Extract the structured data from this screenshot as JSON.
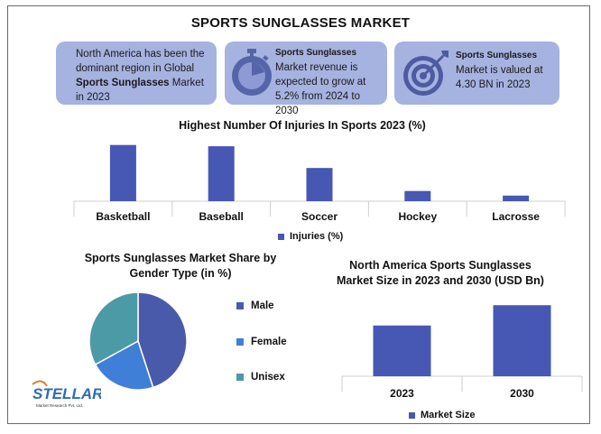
{
  "title": "SPORTS SUNGLASSES MARKET",
  "cards": {
    "card1": {
      "pre": "North America has been the dominant region in Global ",
      "bold": "Sports Sunglasses",
      "post": " Market in 2023"
    },
    "card2": {
      "heading": "Sports Sunglasses",
      "text": "Market revenue is expected to grow at 5.2% from 2024 to 2030",
      "icon": "stopwatch-icon"
    },
    "card3": {
      "heading": "Sports Sunglasses",
      "text": "Market is valued at 4.30 BN in 2023",
      "icon": "target-icon"
    }
  },
  "colors": {
    "bar": "#4658b4",
    "card": "#a6b2e0",
    "male": "#4a5aab",
    "female": "#3f7fd8",
    "unisex": "#4c9aa6"
  },
  "logo": {
    "name": "STELLAR",
    "tagline": "Market Research Pvt. Ltd."
  },
  "chart_data": [
    {
      "type": "bar",
      "title": "Highest Number Of  Injuries In Sports 2023 (%)",
      "categories": [
        "Basketball",
        "Baseball",
        "Soccer",
        "Hockey",
        "Lacrosse"
      ],
      "series": [
        {
          "name": "Injuries (%)",
          "values": [
            22,
            21.5,
            13,
            4,
            2.2
          ]
        }
      ],
      "ylim": [
        0,
        24
      ],
      "grid": false,
      "legend": "bottom"
    },
    {
      "type": "pie",
      "title": "Sports Sunglasses Market Share by Gender Type (in %)",
      "labels": [
        "Male",
        "Female",
        "Unisex"
      ],
      "values": [
        45,
        22,
        33
      ],
      "legend": "right"
    },
    {
      "type": "bar",
      "title": "North America Sports Sunglasses Market Size in 2023 and 2030 (USD Bn)",
      "categories": [
        "2023",
        "2030"
      ],
      "series": [
        {
          "name": "Market Size",
          "values": [
            1.5,
            2.1
          ]
        }
      ],
      "ylim": [
        0,
        2.4
      ],
      "grid": false,
      "legend": "bottom"
    }
  ]
}
